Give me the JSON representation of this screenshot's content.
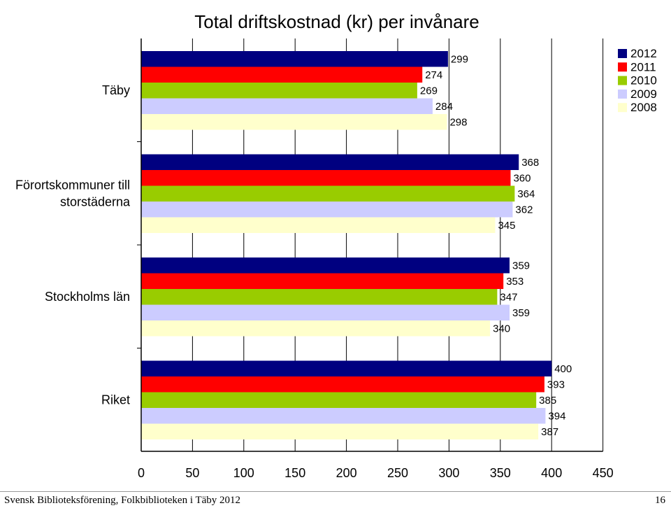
{
  "footer": {
    "left": "Svensk Biblioteksförening, Folkbiblioteken i Täby 2012",
    "page": "16"
  },
  "chart_data": {
    "type": "bar",
    "orientation": "horizontal",
    "title": "Total driftskostnad (kr) per invånare",
    "categories": [
      [
        "Täby"
      ],
      [
        "Förortskommuner till",
        "storstäderna"
      ],
      [
        "Stockholms län"
      ],
      [
        "Riket"
      ]
    ],
    "series": [
      {
        "name": "2012",
        "color": "#000080",
        "values": [
          299,
          368,
          359,
          400
        ]
      },
      {
        "name": "2011",
        "color": "#ff0000",
        "values": [
          274,
          360,
          353,
          393
        ]
      },
      {
        "name": "2010",
        "color": "#99cc00",
        "values": [
          269,
          364,
          347,
          385
        ]
      },
      {
        "name": "2009",
        "color": "#ccccff",
        "values": [
          284,
          362,
          359,
          394
        ]
      },
      {
        "name": "2008",
        "color": "#ffffcc",
        "values": [
          298,
          345,
          340,
          387
        ]
      }
    ],
    "xlim": [
      0,
      450
    ],
    "xticks": [
      0,
      50,
      100,
      150,
      200,
      250,
      300,
      350,
      400,
      450
    ],
    "grid": "vertical",
    "legend": "top-right"
  }
}
